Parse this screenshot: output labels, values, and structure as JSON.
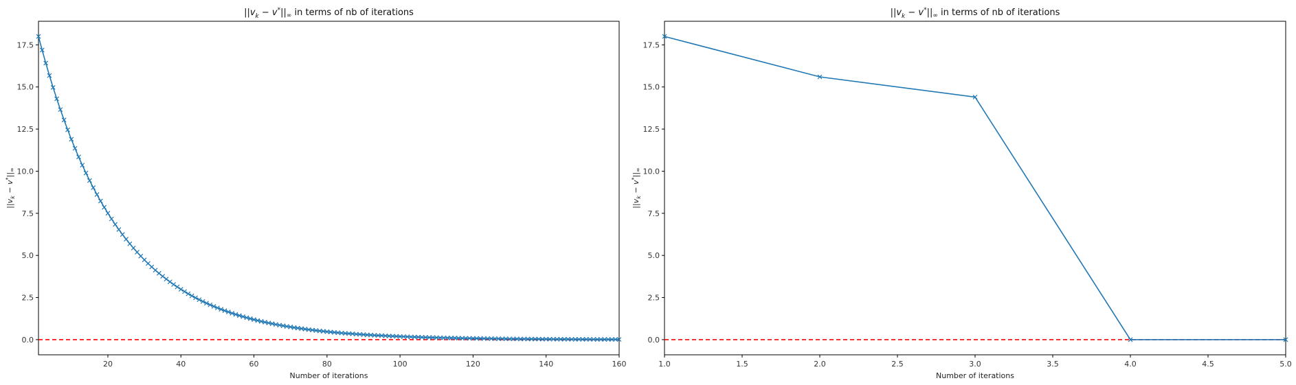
{
  "chart_data": [
    {
      "type": "line",
      "title": "||v_k − v*||∞ in terms of nb of iterations",
      "xlabel": "Number of iterations",
      "ylabel": "||v_k − v*||∞",
      "xlim": [
        1,
        160
      ],
      "ylim": [
        -0.9,
        18.9
      ],
      "xticks": [
        20,
        40,
        60,
        80,
        100,
        120,
        140,
        160
      ],
      "yticks": [
        0.0,
        2.5,
        5.0,
        7.5,
        10.0,
        12.5,
        15.0,
        17.5
      ],
      "series": [
        {
          "marker": "x",
          "color": "#1f77b4",
          "generator": {
            "kind": "geometric",
            "start": 18.0,
            "ratio": 0.955,
            "count": 160
          }
        }
      ],
      "reference_line": {
        "y": 0,
        "color": "#ff0000",
        "style": "dashed"
      },
      "grid": false
    },
    {
      "type": "line",
      "title": "||v_k − v*||∞ in terms of nb of iterations",
      "xlabel": "Number of iterations",
      "ylabel": "||v_k − v*||∞",
      "xlim": [
        1.0,
        5.0
      ],
      "ylim": [
        -0.9,
        18.9
      ],
      "xticks": [
        1.0,
        1.5,
        2.0,
        2.5,
        3.0,
        3.5,
        4.0,
        4.5,
        5.0
      ],
      "yticks": [
        0.0,
        2.5,
        5.0,
        7.5,
        10.0,
        12.5,
        15.0,
        17.5
      ],
      "series": [
        {
          "marker": "x",
          "color": "#1f77b4",
          "x": [
            1,
            2,
            3,
            4,
            5
          ],
          "y": [
            18.0,
            15.6,
            14.4,
            0.0,
            0.0
          ]
        }
      ],
      "reference_line": {
        "y": 0,
        "color": "#ff0000",
        "style": "dashed"
      },
      "grid": false
    }
  ]
}
